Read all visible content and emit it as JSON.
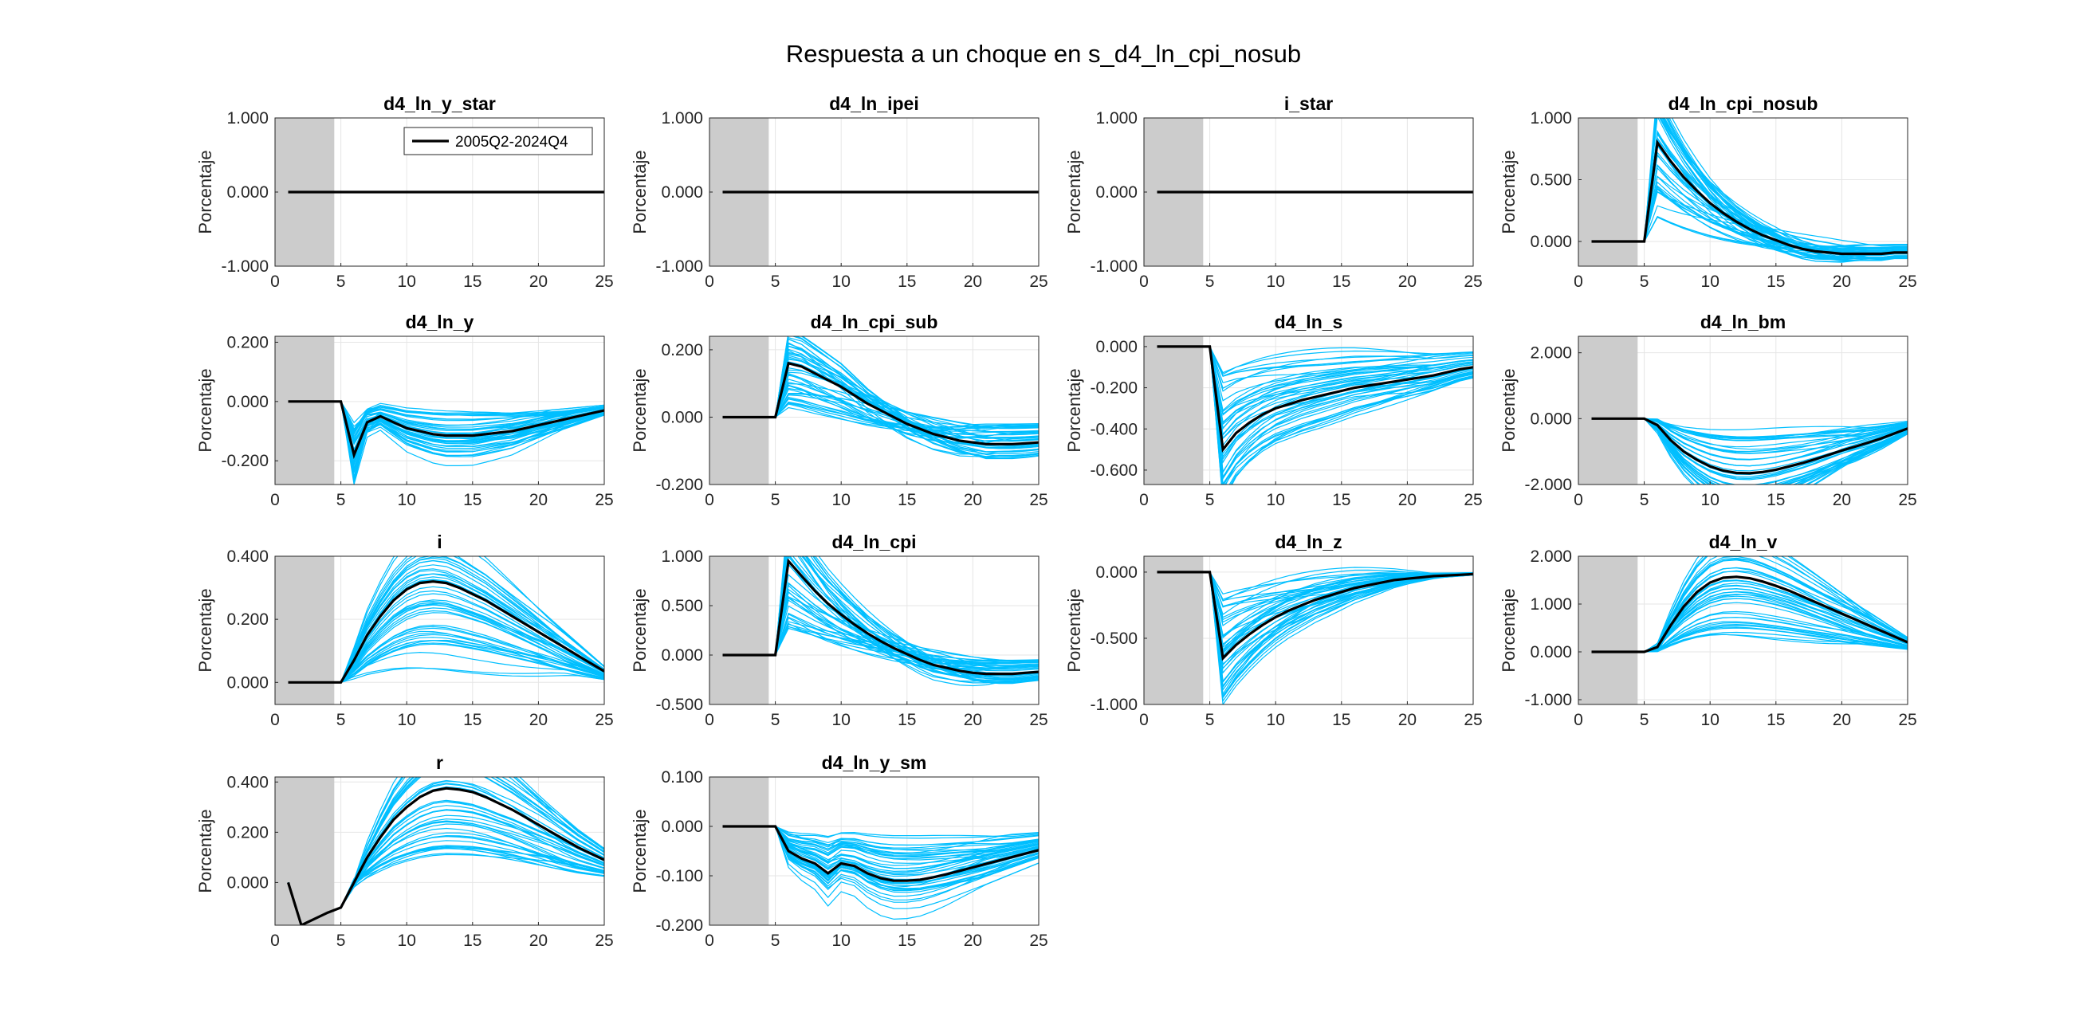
{
  "figure": {
    "title": "Respuesta a un choque en s_d4_ln_cpi_nosub",
    "legend_label": "2005Q2-2024Q4",
    "ylabel": "Porcentaje",
    "colors": {
      "baseline": "#000000",
      "draws": "#00BFFF",
      "shade": "#CCCCCC",
      "grid": "#E6E6E6",
      "axis": "#262626"
    }
  },
  "chart_data": [
    {
      "type": "line",
      "title": "d4_ln_y_star",
      "ylabel": "Porcentaje",
      "xlim": [
        0,
        25
      ],
      "ylim": [
        -1,
        1
      ],
      "yticks": [
        -1,
        0,
        1
      ],
      "ytick_labels": [
        "-1.000",
        "0.000",
        "1.000"
      ],
      "xticks": [
        0,
        5,
        10,
        15,
        20,
        25
      ],
      "shaded": [
        0,
        4.5
      ],
      "legend": "2005Q2-2024Q4",
      "series": [
        {
          "name": "2005Q2-2024Q4",
          "x": [
            1,
            25
          ],
          "y": [
            0,
            0
          ]
        }
      ]
    },
    {
      "type": "line",
      "title": "d4_ln_ipei",
      "ylabel": "Porcentaje",
      "xlim": [
        0,
        25
      ],
      "ylim": [
        -1,
        1
      ],
      "yticks": [
        -1,
        0,
        1
      ],
      "ytick_labels": [
        "-1.000",
        "0.000",
        "1.000"
      ],
      "xticks": [
        0,
        5,
        10,
        15,
        20,
        25
      ],
      "shaded": [
        0,
        4.5
      ],
      "series": [
        {
          "x": [
            1,
            25
          ],
          "y": [
            0,
            0
          ]
        }
      ]
    },
    {
      "type": "line",
      "title": "i_star",
      "ylabel": "Porcentaje",
      "xlim": [
        0,
        25
      ],
      "ylim": [
        -1,
        1
      ],
      "yticks": [
        -1,
        0,
        1
      ],
      "ytick_labels": [
        "-1.000",
        "0.000",
        "1.000"
      ],
      "xticks": [
        0,
        5,
        10,
        15,
        20,
        25
      ],
      "shaded": [
        0,
        4.5
      ],
      "series": [
        {
          "x": [
            1,
            25
          ],
          "y": [
            0,
            0
          ]
        }
      ]
    },
    {
      "type": "line",
      "title": "d4_ln_cpi_nosub",
      "ylabel": "Porcentaje",
      "xlim": [
        0,
        25
      ],
      "ylim": [
        -0.2,
        1
      ],
      "yticks": [
        0,
        0.5,
        1
      ],
      "ytick_labels": [
        "0.000",
        "0.500",
        "1.000"
      ],
      "xticks": [
        0,
        5,
        10,
        15,
        20,
        25
      ],
      "shaded": [
        0,
        4.5
      ],
      "series": [
        {
          "x": [
            1,
            2,
            3,
            4,
            5,
            6,
            7,
            8,
            9,
            10,
            11,
            12,
            13,
            14,
            15,
            16,
            17,
            18,
            19,
            20,
            21,
            22,
            23,
            24,
            25
          ],
          "y": [
            0,
            0,
            0,
            0,
            0,
            0.8,
            0.65,
            0.52,
            0.41,
            0.31,
            0.23,
            0.16,
            0.1,
            0.05,
            0.01,
            -0.03,
            -0.06,
            -0.08,
            -0.09,
            -0.1,
            -0.1,
            -0.1,
            -0.1,
            -0.09,
            -0.09
          ]
        }
      ]
    },
    {
      "type": "line",
      "title": "d4_ln_y",
      "ylabel": "Porcentaje",
      "xlim": [
        0,
        25
      ],
      "ylim": [
        -0.28,
        0.22
      ],
      "yticks": [
        -0.2,
        0,
        0.2
      ],
      "ytick_labels": [
        "-0.200",
        "0.000",
        "0.200"
      ],
      "xticks": [
        0,
        5,
        10,
        15,
        20,
        25
      ],
      "shaded": [
        0,
        4.5
      ],
      "series": [
        {
          "x": [
            1,
            2,
            3,
            4,
            5,
            6,
            7,
            8,
            9,
            10,
            11,
            12,
            13,
            14,
            15,
            16,
            17,
            18,
            19,
            20,
            21,
            22,
            23,
            24,
            25
          ],
          "y": [
            0,
            0,
            0,
            0,
            0,
            -0.18,
            -0.07,
            -0.05,
            -0.07,
            -0.09,
            -0.1,
            -0.11,
            -0.115,
            -0.115,
            -0.115,
            -0.11,
            -0.105,
            -0.1,
            -0.09,
            -0.08,
            -0.07,
            -0.06,
            -0.05,
            -0.04,
            -0.03
          ]
        }
      ]
    },
    {
      "type": "line",
      "title": "d4_ln_cpi_sub",
      "ylabel": "Porcentaje",
      "xlim": [
        0,
        25
      ],
      "ylim": [
        -0.2,
        0.24
      ],
      "yticks": [
        -0.2,
        0,
        0.2
      ],
      "ytick_labels": [
        "-0.200",
        "0.000",
        "0.200"
      ],
      "xticks": [
        0,
        5,
        10,
        15,
        20,
        25
      ],
      "shaded": [
        0,
        4.5
      ],
      "series": [
        {
          "x": [
            1,
            2,
            3,
            4,
            5,
            6,
            7,
            8,
            9,
            10,
            11,
            12,
            13,
            14,
            15,
            16,
            17,
            18,
            19,
            20,
            21,
            22,
            23,
            24,
            25
          ],
          "y": [
            0,
            0,
            0,
            0,
            0,
            0.16,
            0.15,
            0.13,
            0.11,
            0.09,
            0.065,
            0.04,
            0.02,
            0,
            -0.02,
            -0.035,
            -0.05,
            -0.06,
            -0.07,
            -0.075,
            -0.08,
            -0.08,
            -0.08,
            -0.078,
            -0.075
          ]
        }
      ]
    },
    {
      "type": "line",
      "title": "d4_ln_s",
      "ylabel": "Porcentaje",
      "xlim": [
        0,
        25
      ],
      "ylim": [
        -0.67,
        0.05
      ],
      "yticks": [
        -0.6,
        -0.4,
        -0.2,
        0
      ],
      "ytick_labels": [
        "-0.600",
        "-0.400",
        "-0.200",
        "0.000"
      ],
      "xticks": [
        0,
        5,
        10,
        15,
        20,
        25
      ],
      "shaded": [
        0,
        4.5
      ],
      "series": [
        {
          "x": [
            1,
            2,
            3,
            4,
            5,
            6,
            7,
            8,
            9,
            10,
            11,
            12,
            13,
            14,
            15,
            16,
            17,
            18,
            19,
            20,
            21,
            22,
            23,
            24,
            25
          ],
          "y": [
            0,
            0,
            0,
            0,
            0,
            -0.5,
            -0.42,
            -0.37,
            -0.33,
            -0.3,
            -0.28,
            -0.26,
            -0.245,
            -0.23,
            -0.215,
            -0.2,
            -0.19,
            -0.18,
            -0.17,
            -0.16,
            -0.15,
            -0.14,
            -0.125,
            -0.11,
            -0.1
          ]
        }
      ]
    },
    {
      "type": "line",
      "title": "d4_ln_bm",
      "ylabel": "Porcentaje",
      "xlim": [
        0,
        25
      ],
      "ylim": [
        -2,
        2.5
      ],
      "yticks": [
        -2,
        0,
        2
      ],
      "ytick_labels": [
        "-2.000",
        "0.000",
        "2.000"
      ],
      "xticks": [
        0,
        5,
        10,
        15,
        20,
        25
      ],
      "shaded": [
        0,
        4.5
      ],
      "series": [
        {
          "x": [
            1,
            2,
            3,
            4,
            5,
            6,
            7,
            8,
            9,
            10,
            11,
            12,
            13,
            14,
            15,
            16,
            17,
            18,
            19,
            20,
            21,
            22,
            23,
            24,
            25
          ],
          "y": [
            0,
            0,
            0,
            0,
            0,
            -0.2,
            -0.65,
            -1.0,
            -1.25,
            -1.45,
            -1.58,
            -1.65,
            -1.66,
            -1.62,
            -1.55,
            -1.45,
            -1.35,
            -1.23,
            -1.1,
            -0.97,
            -0.85,
            -0.73,
            -0.6,
            -0.45,
            -0.3
          ]
        }
      ]
    },
    {
      "type": "line",
      "title": "i",
      "ylabel": "Porcentaje",
      "xlim": [
        0,
        25
      ],
      "ylim": [
        -0.07,
        0.4
      ],
      "yticks": [
        0,
        0.2,
        0.4
      ],
      "ytick_labels": [
        "0.000",
        "0.200",
        "0.400"
      ],
      "xticks": [
        0,
        5,
        10,
        15,
        20,
        25
      ],
      "shaded": [
        0,
        4.5
      ],
      "series": [
        {
          "x": [
            1,
            2,
            3,
            4,
            5,
            6,
            7,
            8,
            9,
            10,
            11,
            12,
            13,
            14,
            15,
            16,
            17,
            18,
            19,
            20,
            21,
            22,
            23,
            24,
            25
          ],
          "y": [
            0,
            0,
            0,
            0,
            0,
            0.07,
            0.15,
            0.21,
            0.26,
            0.295,
            0.315,
            0.32,
            0.315,
            0.3,
            0.28,
            0.26,
            0.235,
            0.21,
            0.185,
            0.16,
            0.135,
            0.11,
            0.085,
            0.06,
            0.035
          ]
        }
      ]
    },
    {
      "type": "line",
      "title": "d4_ln_cpi",
      "ylabel": "Porcentaje",
      "xlim": [
        0,
        25
      ],
      "ylim": [
        -0.5,
        1
      ],
      "yticks": [
        -0.5,
        0,
        0.5,
        1
      ],
      "ytick_labels": [
        "-0.500",
        "0.000",
        "0.500",
        "1.000"
      ],
      "xticks": [
        0,
        5,
        10,
        15,
        20,
        25
      ],
      "shaded": [
        0,
        4.5
      ],
      "series": [
        {
          "x": [
            1,
            2,
            3,
            4,
            5,
            6,
            7,
            8,
            9,
            10,
            11,
            12,
            13,
            14,
            15,
            16,
            17,
            18,
            19,
            20,
            21,
            22,
            23,
            24,
            25
          ],
          "y": [
            0,
            0,
            0,
            0,
            0,
            0.95,
            0.8,
            0.65,
            0.52,
            0.41,
            0.31,
            0.22,
            0.14,
            0.07,
            0.01,
            -0.05,
            -0.1,
            -0.13,
            -0.16,
            -0.18,
            -0.19,
            -0.19,
            -0.19,
            -0.18,
            -0.17
          ]
        }
      ]
    },
    {
      "type": "line",
      "title": "d4_ln_z",
      "ylabel": "Porcentaje",
      "xlim": [
        0,
        25
      ],
      "ylim": [
        -1,
        0.12
      ],
      "yticks": [
        -1,
        -0.5,
        0
      ],
      "ytick_labels": [
        "-1.000",
        "-0.500",
        "0.000"
      ],
      "xticks": [
        0,
        5,
        10,
        15,
        20,
        25
      ],
      "shaded": [
        0,
        4.5
      ],
      "series": [
        {
          "x": [
            1,
            2,
            3,
            4,
            5,
            6,
            7,
            8,
            9,
            10,
            11,
            12,
            13,
            14,
            15,
            16,
            17,
            18,
            19,
            20,
            21,
            22,
            23,
            24,
            25
          ],
          "y": [
            0,
            0,
            0,
            0,
            0,
            -0.65,
            -0.55,
            -0.47,
            -0.4,
            -0.34,
            -0.29,
            -0.25,
            -0.21,
            -0.18,
            -0.15,
            -0.12,
            -0.1,
            -0.08,
            -0.06,
            -0.05,
            -0.04,
            -0.03,
            -0.025,
            -0.02,
            -0.015
          ]
        }
      ]
    },
    {
      "type": "line",
      "title": "d4_ln_v",
      "ylabel": "Porcentaje",
      "xlim": [
        0,
        25
      ],
      "ylim": [
        -1.1,
        2
      ],
      "yticks": [
        -1,
        0,
        1,
        2
      ],
      "ytick_labels": [
        "-1.000",
        "0.000",
        "1.000",
        "2.000"
      ],
      "xticks": [
        0,
        5,
        10,
        15,
        20,
        25
      ],
      "shaded": [
        0,
        4.5
      ],
      "series": [
        {
          "x": [
            1,
            2,
            3,
            4,
            5,
            6,
            7,
            8,
            9,
            10,
            11,
            12,
            13,
            14,
            15,
            16,
            17,
            18,
            19,
            20,
            21,
            22,
            23,
            24,
            25
          ],
          "y": [
            0,
            0,
            0,
            0,
            0,
            0.1,
            0.55,
            0.95,
            1.25,
            1.45,
            1.55,
            1.57,
            1.54,
            1.47,
            1.38,
            1.28,
            1.16,
            1.04,
            0.92,
            0.8,
            0.68,
            0.56,
            0.44,
            0.32,
            0.2
          ]
        }
      ]
    },
    {
      "type": "line",
      "title": "r",
      "ylabel": "Porcentaje",
      "xlim": [
        0,
        25
      ],
      "ylim": [
        -0.17,
        0.42
      ],
      "yticks": [
        0,
        0.2,
        0.4
      ],
      "ytick_labels": [
        "0.000",
        "0.200",
        "0.400"
      ],
      "xticks": [
        0,
        5,
        10,
        15,
        20,
        25
      ],
      "shaded": [
        0,
        4.5
      ],
      "series": [
        {
          "x": [
            1,
            2,
            3,
            4,
            5,
            6,
            7,
            8,
            9,
            10,
            11,
            12,
            13,
            14,
            15,
            16,
            17,
            18,
            19,
            20,
            21,
            22,
            23,
            24,
            25
          ],
          "y": [
            0,
            -0.17,
            -0.145,
            -0.12,
            -0.1,
            0.0,
            0.1,
            0.18,
            0.25,
            0.3,
            0.34,
            0.365,
            0.375,
            0.37,
            0.36,
            0.34,
            0.315,
            0.29,
            0.26,
            0.23,
            0.2,
            0.17,
            0.14,
            0.115,
            0.09
          ]
        }
      ]
    },
    {
      "type": "line",
      "title": "d4_ln_y_sm",
      "ylabel": "Porcentaje",
      "xlim": [
        0,
        25
      ],
      "ylim": [
        -0.2,
        0.1
      ],
      "yticks": [
        -0.2,
        -0.1,
        0,
        0.1
      ],
      "ytick_labels": [
        "-0.200",
        "-0.100",
        "0.000",
        "0.100"
      ],
      "xticks": [
        0,
        5,
        10,
        15,
        20,
        25
      ],
      "shaded": [
        0,
        4.5
      ],
      "series": [
        {
          "x": [
            1,
            2,
            3,
            4,
            5,
            6,
            7,
            8,
            9,
            10,
            11,
            12,
            13,
            14,
            15,
            16,
            17,
            18,
            19,
            20,
            21,
            22,
            23,
            24,
            25
          ],
          "y": [
            0,
            0,
            0,
            0,
            0,
            -0.05,
            -0.065,
            -0.075,
            -0.095,
            -0.075,
            -0.08,
            -0.095,
            -0.105,
            -0.11,
            -0.11,
            -0.108,
            -0.103,
            -0.097,
            -0.09,
            -0.083,
            -0.076,
            -0.069,
            -0.062,
            -0.055,
            -0.048
          ]
        }
      ]
    }
  ]
}
